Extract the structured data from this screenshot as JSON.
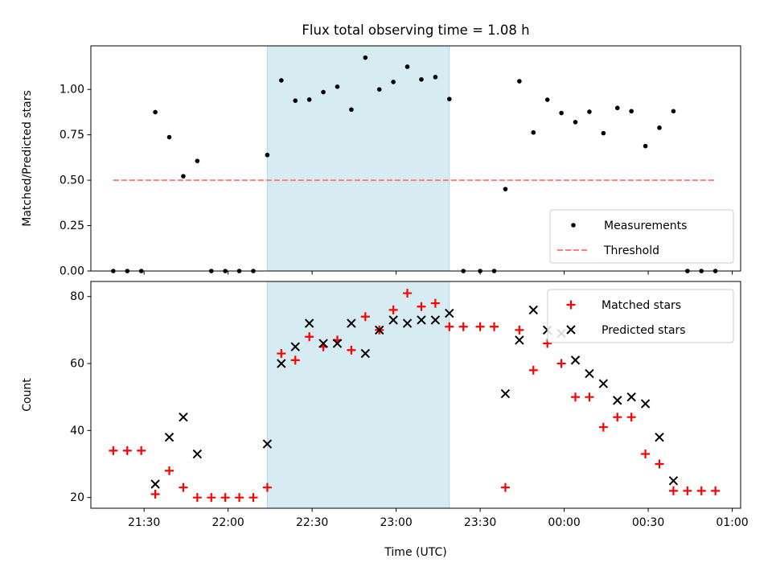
{
  "figure": {
    "title": "Flux total observing time = 1.08 h",
    "xlabel": "Time (UTC)",
    "x_tick_labels": [
      "21:30",
      "22:00",
      "22:30",
      "23:00",
      "23:30",
      "00:00",
      "00:30",
      "01:00"
    ],
    "colors": {
      "shade": "#add8e6",
      "threshold": "#ff7f7f",
      "matched": "#ff0000",
      "points": "#000000"
    }
  },
  "chart_data": [
    {
      "type": "scatter",
      "ylabel": "Matched/Predicted stars",
      "xlim": [
        "21:11",
        "01:03"
      ],
      "ylim": [
        0,
        1.24
      ],
      "y_ticks": [
        0.0,
        0.25,
        0.5,
        0.75,
        1.0
      ],
      "y_tick_labels": [
        "0.00",
        "0.25",
        "0.50",
        "0.75",
        "1.00"
      ],
      "shaded_interval": [
        "22:14",
        "23:19"
      ],
      "legend": {
        "placement": "lower right",
        "entries": [
          "Measurements",
          "Threshold"
        ]
      },
      "series": [
        {
          "name": "Measurements",
          "marker": "dot",
          "points": [
            [
              "21:19",
              0.0
            ],
            [
              "21:24",
              0.0
            ],
            [
              "21:29",
              0.0
            ],
            [
              "21:34",
              0.875
            ],
            [
              "21:39",
              0.737
            ],
            [
              "21:44",
              0.522
            ],
            [
              "21:49",
              0.606
            ],
            [
              "21:54",
              0.0
            ],
            [
              "21:59",
              0.0
            ],
            [
              "22:04",
              0.0
            ],
            [
              "22:09",
              0.0
            ],
            [
              "22:14",
              0.639
            ],
            [
              "22:19",
              1.05
            ],
            [
              "22:24",
              0.938
            ],
            [
              "22:29",
              0.944
            ],
            [
              "22:34",
              0.985
            ],
            [
              "22:39",
              1.015
            ],
            [
              "22:44",
              0.889
            ],
            [
              "22:49",
              1.175
            ],
            [
              "22:54",
              1.0
            ],
            [
              "22:59",
              1.041
            ],
            [
              "23:04",
              1.125
            ],
            [
              "23:09",
              1.055
            ],
            [
              "23:14",
              1.068
            ],
            [
              "23:19",
              0.947
            ],
            [
              "23:24",
              0.0
            ],
            [
              "23:30",
              0.0
            ],
            [
              "23:35",
              0.0
            ],
            [
              "23:39",
              0.451
            ],
            [
              "23:44",
              1.045
            ],
            [
              "23:49",
              0.763
            ],
            [
              "23:54",
              0.943
            ],
            [
              "23:59",
              0.87
            ],
            [
              "00:04",
              0.82
            ],
            [
              "00:09",
              0.877
            ],
            [
              "00:14",
              0.759
            ],
            [
              "00:19",
              0.898
            ],
            [
              "00:24",
              0.88
            ],
            [
              "00:29",
              0.688
            ],
            [
              "00:34",
              0.789
            ],
            [
              "00:39",
              0.88
            ],
            [
              "00:44",
              0.0
            ],
            [
              "00:49",
              0.0
            ],
            [
              "00:54",
              0.0
            ]
          ]
        },
        {
          "name": "Threshold",
          "marker": "dashed-line",
          "points": [
            [
              "21:19",
              0.5
            ],
            [
              "00:54",
              0.5
            ]
          ]
        }
      ]
    },
    {
      "type": "scatter",
      "ylabel": "Count",
      "xlim": [
        "21:11",
        "01:03"
      ],
      "ylim": [
        16.8,
        84.5
      ],
      "y_ticks": [
        20,
        40,
        60,
        80
      ],
      "y_tick_labels": [
        "20",
        "40",
        "60",
        "80"
      ],
      "shaded_interval": [
        "22:14",
        "23:19"
      ],
      "legend": {
        "placement": "upper right",
        "entries": [
          "Matched stars",
          "Predicted stars"
        ]
      },
      "series": [
        {
          "name": "Matched stars",
          "marker": "plus",
          "points": [
            [
              "21:19",
              34
            ],
            [
              "21:24",
              34
            ],
            [
              "21:29",
              34
            ],
            [
              "21:34",
              21
            ],
            [
              "21:39",
              28
            ],
            [
              "21:44",
              23
            ],
            [
              "21:49",
              20
            ],
            [
              "21:54",
              20
            ],
            [
              "21:59",
              20
            ],
            [
              "22:04",
              20
            ],
            [
              "22:09",
              20
            ],
            [
              "22:14",
              23
            ],
            [
              "22:19",
              63
            ],
            [
              "22:24",
              61
            ],
            [
              "22:29",
              68
            ],
            [
              "22:34",
              65
            ],
            [
              "22:39",
              67
            ],
            [
              "22:44",
              64
            ],
            [
              "22:49",
              74
            ],
            [
              "22:54",
              70
            ],
            [
              "22:59",
              76
            ],
            [
              "23:04",
              81
            ],
            [
              "23:09",
              77
            ],
            [
              "23:14",
              78
            ],
            [
              "23:19",
              71
            ],
            [
              "23:24",
              71
            ],
            [
              "23:30",
              71
            ],
            [
              "23:35",
              71
            ],
            [
              "23:39",
              23
            ],
            [
              "23:44",
              70
            ],
            [
              "23:49",
              58
            ],
            [
              "23:54",
              66
            ],
            [
              "23:59",
              60
            ],
            [
              "00:04",
              50
            ],
            [
              "00:09",
              50
            ],
            [
              "00:14",
              41
            ],
            [
              "00:19",
              44
            ],
            [
              "00:24",
              44
            ],
            [
              "00:29",
              33
            ],
            [
              "00:34",
              30
            ],
            [
              "00:39",
              22
            ],
            [
              "00:44",
              22
            ],
            [
              "00:49",
              22
            ],
            [
              "00:54",
              22
            ]
          ]
        },
        {
          "name": "Predicted stars",
          "marker": "x",
          "points": [
            [
              "21:34",
              24
            ],
            [
              "21:39",
              38
            ],
            [
              "21:44",
              44
            ],
            [
              "21:49",
              33
            ],
            [
              "22:14",
              36
            ],
            [
              "22:19",
              60
            ],
            [
              "22:24",
              65
            ],
            [
              "22:29",
              72
            ],
            [
              "22:34",
              66
            ],
            [
              "22:39",
              66
            ],
            [
              "22:44",
              72
            ],
            [
              "22:49",
              63
            ],
            [
              "22:54",
              70
            ],
            [
              "22:59",
              73
            ],
            [
              "23:04",
              72
            ],
            [
              "23:09",
              73
            ],
            [
              "23:14",
              73
            ],
            [
              "23:19",
              75
            ],
            [
              "23:39",
              51
            ],
            [
              "23:44",
              67
            ],
            [
              "23:49",
              76
            ],
            [
              "23:54",
              70
            ],
            [
              "23:59",
              69
            ],
            [
              "00:04",
              61
            ],
            [
              "00:09",
              57
            ],
            [
              "00:14",
              54
            ],
            [
              "00:19",
              49
            ],
            [
              "00:24",
              50
            ],
            [
              "00:29",
              48
            ],
            [
              "00:34",
              38
            ],
            [
              "00:39",
              25
            ]
          ]
        }
      ]
    }
  ]
}
